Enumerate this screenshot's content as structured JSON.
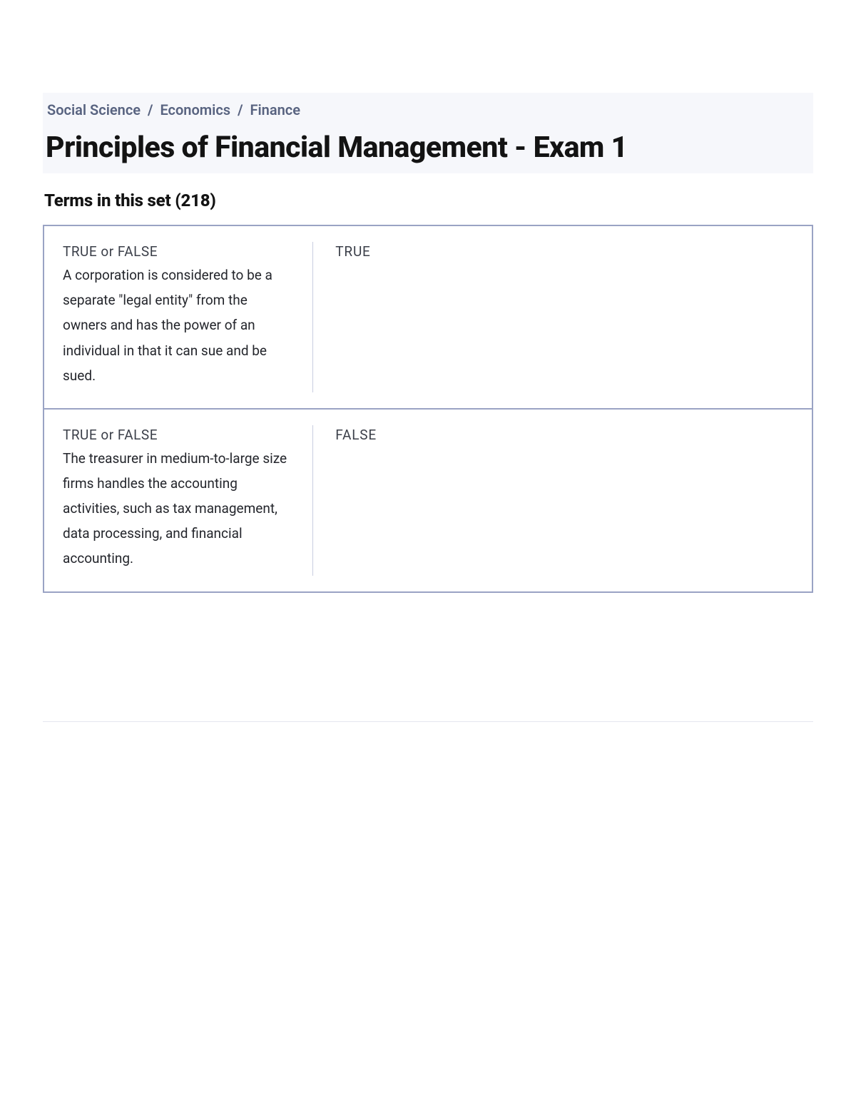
{
  "colors": {
    "header_bg": "#f6f7fb",
    "breadcrumb_text": "#586380",
    "title_text": "#131313",
    "border_color": "#9aa3c4",
    "divider_color": "#c9cde0",
    "body_text": "#24262c",
    "muted_text": "#3b3f49",
    "hr_color": "#e4e6ef"
  },
  "typography": {
    "breadcrumb_fontsize": 20,
    "title_fontsize": 41,
    "section_fontsize": 24,
    "body_fontsize": 19
  },
  "breadcrumb": {
    "items": [
      {
        "label": "Social Science"
      },
      {
        "label": "Economics"
      },
      {
        "label": "Finance"
      }
    ],
    "separator": "/"
  },
  "title": "Principles of Financial Management - Exam 1",
  "section": {
    "label_prefix": "Terms in this set (",
    "count": "218",
    "label_suffix": ")"
  },
  "terms": [
    {
      "tf_label": "TRUE or FALSE",
      "question": "A corporation is considered to be a separate \"legal entity\" from the owners and has the power of an individual in that it can sue and be sued.",
      "answer": "TRUE"
    },
    {
      "tf_label": "TRUE or FALSE",
      "question": "The treasurer in medium-to-large size firms handles the accounting activities, such as tax management, data processing, and financial accounting.",
      "answer": "FALSE"
    }
  ]
}
